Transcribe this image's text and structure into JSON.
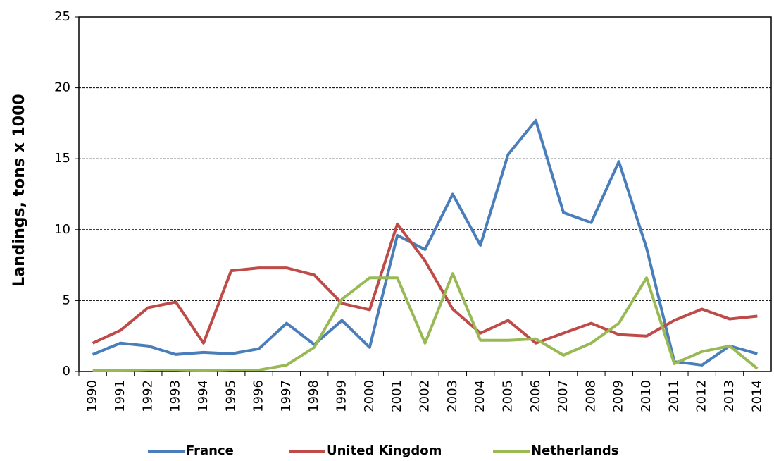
{
  "chart_data": {
    "type": "line",
    "y_label": "Landings, tons x 1000",
    "categories": [
      "1990",
      "1991",
      "1992",
      "1993",
      "1994",
      "1995",
      "1996",
      "1997",
      "1998",
      "1999",
      "2000",
      "2001",
      "2002",
      "2003",
      "2004",
      "2005",
      "2006",
      "2007",
      "2008",
      "2009",
      "2010",
      "2011",
      "2012",
      "2013",
      "2014"
    ],
    "series": [
      {
        "name": "France",
        "color": "#4a7ebb",
        "values": [
          1.2,
          2.0,
          1.8,
          1.2,
          1.35,
          1.25,
          1.6,
          3.4,
          1.9,
          3.6,
          1.7,
          9.6,
          8.6,
          12.5,
          8.9,
          15.3,
          17.7,
          11.2,
          10.5,
          14.8,
          8.7,
          0.7,
          0.45,
          1.8,
          1.25
        ]
      },
      {
        "name": "United Kingdom",
        "color": "#be4b48",
        "values": [
          2.0,
          2.9,
          4.5,
          4.9,
          2.0,
          7.1,
          7.3,
          7.3,
          6.8,
          4.8,
          4.35,
          10.4,
          7.8,
          4.4,
          2.7,
          3.6,
          2.0,
          2.7,
          3.4,
          2.6,
          2.5,
          3.6,
          4.4,
          3.7,
          3.9
        ]
      },
      {
        "name": "Netherlands",
        "color": "#98b954",
        "values": [
          0.05,
          0.05,
          0.1,
          0.1,
          0.05,
          0.1,
          0.1,
          0.45,
          1.7,
          5.1,
          6.6,
          6.6,
          2.0,
          6.9,
          2.2,
          2.2,
          2.3,
          1.15,
          2.0,
          3.4,
          6.6,
          0.55,
          1.4,
          1.8,
          0.2
        ]
      }
    ],
    "ylim": [
      0,
      25
    ],
    "yticks": [
      0,
      5,
      10,
      15,
      20,
      25
    ],
    "grid": true,
    "legend": "bottom"
  }
}
